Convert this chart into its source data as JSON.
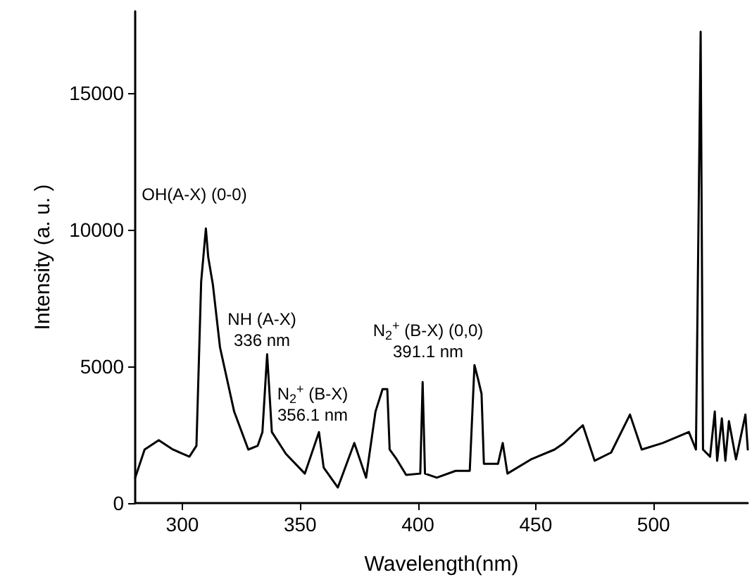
{
  "chart_data": {
    "type": "line",
    "xlabel": "Wavelength(nm)",
    "ylabel": "Intensity (a. u. )",
    "xlim": [
      280,
      540
    ],
    "xticks": [
      300,
      350,
      400,
      450,
      500
    ],
    "ylim": [
      0,
      18000
    ],
    "yticks": [
      0,
      5000,
      10000,
      15000
    ],
    "grid": false,
    "marker": "none",
    "line_style": "solid",
    "series": [
      {
        "color": "#000000",
        "x": [
          280,
          284,
          290,
          296,
          303,
          306,
          308,
          310,
          311,
          313,
          316,
          322,
          328,
          332,
          334,
          336,
          338,
          344,
          352,
          358,
          360,
          366,
          373,
          378,
          382,
          385,
          387,
          388,
          391,
          395,
          401,
          402,
          403,
          408,
          416,
          422,
          424,
          425.5,
          427,
          428,
          434,
          436,
          438,
          448,
          458,
          462,
          470,
          475,
          482,
          490,
          495,
          504,
          515,
          518,
          520,
          521,
          524,
          526,
          527,
          529,
          530.5,
          532,
          535,
          539,
          540
        ],
        "values": [
          930,
          1960,
          2300,
          1960,
          1700,
          2100,
          8100,
          10050,
          9000,
          7980,
          5700,
          3350,
          1960,
          2100,
          2600,
          5450,
          2600,
          1800,
          1080,
          2600,
          1300,
          570,
          2200,
          930,
          3350,
          4170,
          4170,
          1960,
          1600,
          1030,
          1080,
          4430,
          1080,
          930,
          1180,
          1180,
          5050,
          4550,
          4000,
          1440,
          1440,
          2200,
          1080,
          1600,
          1960,
          2200,
          2850,
          1550,
          1850,
          3240,
          1960,
          2200,
          2600,
          1960,
          17250,
          1960,
          1700,
          3350,
          1550,
          3100,
          1550,
          3000,
          1600,
          3240,
          1960
        ]
      }
    ],
    "annotations": [
      "OH(A-X) (0-0)",
      "NH (A-X)\n336 nm",
      "N$_{2}$$^{+}$ (B-X) (0,0)\n391.1 nm",
      "N$_{2}$$^{+}$ (B-X)\n356.1 nm"
    ]
  }
}
